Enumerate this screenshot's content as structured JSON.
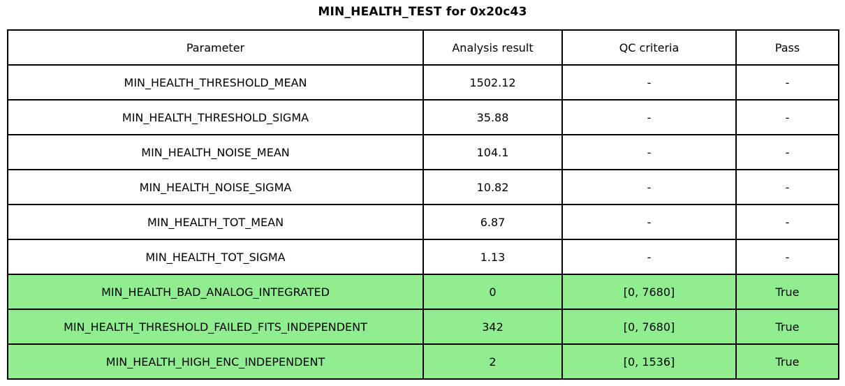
{
  "title": "MIN_HEALTH_TEST for 0x20c43",
  "chart_data": {
    "type": "table",
    "title": "MIN_HEALTH_TEST for 0x20c43",
    "columns": [
      "Parameter",
      "Analysis result",
      "QC criteria",
      "Pass"
    ],
    "rows": [
      [
        "MIN_HEALTH_THRESHOLD_MEAN",
        "1502.12",
        "-",
        "-"
      ],
      [
        "MIN_HEALTH_THRESHOLD_SIGMA",
        "35.88",
        "-",
        "-"
      ],
      [
        "MIN_HEALTH_NOISE_MEAN",
        "104.1",
        "-",
        "-"
      ],
      [
        "MIN_HEALTH_NOISE_SIGMA",
        "10.82",
        "-",
        "-"
      ],
      [
        "MIN_HEALTH_TOT_MEAN",
        "6.87",
        "-",
        "-"
      ],
      [
        "MIN_HEALTH_TOT_SIGMA",
        "1.13",
        "-",
        "-"
      ],
      [
        "MIN_HEALTH_BAD_ANALOG_INTEGRATED",
        "0",
        "[0, 7680]",
        "True"
      ],
      [
        "MIN_HEALTH_THRESHOLD_FAILED_FITS_INDEPENDENT",
        "342",
        "[0, 7680]",
        "True"
      ],
      [
        "MIN_HEALTH_HIGH_ENC_INDEPENDENT",
        "2",
        "[0, 1536]",
        "True"
      ]
    ],
    "highlighted_rows": [
      6,
      7,
      8
    ],
    "grid": true,
    "legend_position": "none"
  },
  "colors": {
    "pass_row_background": "#90ee90",
    "border": "#000000",
    "text": "#000000",
    "page_background": "#ffffff"
  }
}
